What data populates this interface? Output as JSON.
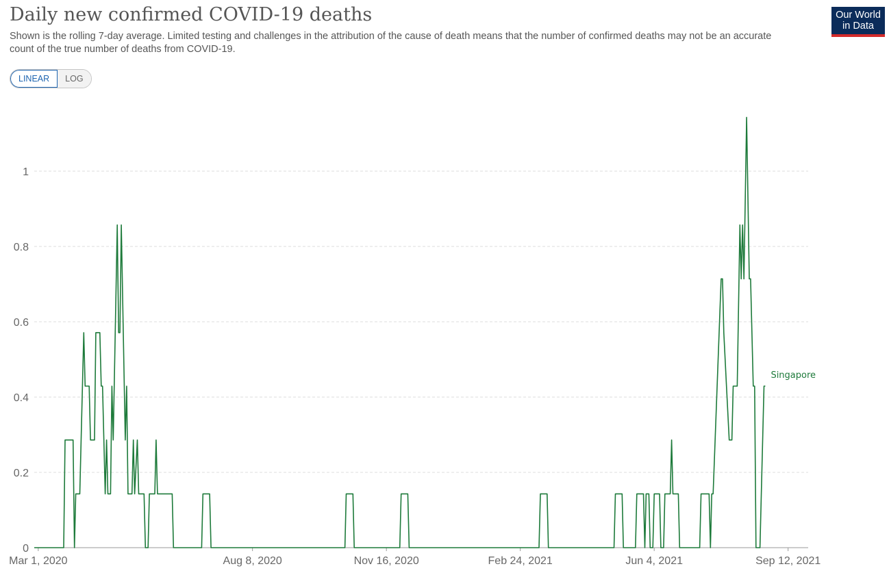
{
  "header": {
    "title": "Daily new confirmed COVID-19 deaths",
    "subtitle": "Shown is the rolling 7-day average. Limited testing and challenges in the attribution of the cause of death means that the number of confirmed deaths may not be an accurate count of the true number of deaths from COVID-19."
  },
  "logo": {
    "line1": "Our World",
    "line2": "in Data",
    "bg_color": "#0b2c5a",
    "accent_color": "#d42b2b"
  },
  "controls": {
    "linear_label": "LINEAR",
    "log_label": "LOG",
    "selected": "LINEAR"
  },
  "chart_data": {
    "type": "line",
    "x_axis_type": "date",
    "xlim": [
      "2020-02-27",
      "2021-09-27"
    ],
    "ylim": [
      0,
      1.2
    ],
    "y_ticks": [
      0,
      0.2,
      0.4,
      0.6,
      0.8,
      1
    ],
    "y_tick_labels": [
      "0",
      "0.2",
      "0.4",
      "0.6",
      "0.8",
      "1"
    ],
    "x_ticks": [
      "2020-03-01",
      "2020-08-08",
      "2020-11-16",
      "2021-02-24",
      "2021-06-04",
      "2021-09-12"
    ],
    "x_tick_labels": [
      "Mar 1, 2020",
      "Aug 8, 2020",
      "Nov 16, 2020",
      "Feb 24, 2021",
      "Jun 4, 2021",
      "Sep 12, 2021"
    ],
    "grid": "horizontal dashed",
    "series": [
      {
        "name": "Singapore",
        "color": "#1d7a3a",
        "points": [
          [
            "2020-02-27",
            0
          ],
          [
            "2020-03-20",
            0
          ],
          [
            "2020-03-21",
            0.286
          ],
          [
            "2020-03-27",
            0.286
          ],
          [
            "2020-03-28",
            0
          ],
          [
            "2020-03-29",
            0.143
          ],
          [
            "2020-04-01",
            0.143
          ],
          [
            "2020-04-04",
            0.571
          ],
          [
            "2020-04-05",
            0.429
          ],
          [
            "2020-04-08",
            0.429
          ],
          [
            "2020-04-09",
            0.286
          ],
          [
            "2020-04-12",
            0.286
          ],
          [
            "2020-04-13",
            0.571
          ],
          [
            "2020-04-16",
            0.571
          ],
          [
            "2020-04-17",
            0.429
          ],
          [
            "2020-04-18",
            0.429
          ],
          [
            "2020-04-20",
            0.143
          ],
          [
            "2020-04-21",
            0.286
          ],
          [
            "2020-04-22",
            0.143
          ],
          [
            "2020-04-24",
            0.143
          ],
          [
            "2020-04-25",
            0.429
          ],
          [
            "2020-04-26",
            0.286
          ],
          [
            "2020-04-29",
            0.857
          ],
          [
            "2020-04-30",
            0.571
          ],
          [
            "2020-05-01",
            0.571
          ],
          [
            "2020-05-02",
            0.857
          ],
          [
            "2020-05-05",
            0.286
          ],
          [
            "2020-05-06",
            0.429
          ],
          [
            "2020-05-07",
            0.143
          ],
          [
            "2020-05-10",
            0.143
          ],
          [
            "2020-05-11",
            0.286
          ],
          [
            "2020-05-12",
            0.143
          ],
          [
            "2020-05-14",
            0.286
          ],
          [
            "2020-05-15",
            0.143
          ],
          [
            "2020-05-19",
            0.143
          ],
          [
            "2020-05-20",
            0
          ],
          [
            "2020-05-22",
            0
          ],
          [
            "2020-05-23",
            0.143
          ],
          [
            "2020-05-27",
            0.143
          ],
          [
            "2020-05-28",
            0.286
          ],
          [
            "2020-05-29",
            0.143
          ],
          [
            "2020-06-09",
            0.143
          ],
          [
            "2020-06-10",
            0
          ],
          [
            "2020-07-01",
            0
          ],
          [
            "2020-07-02",
            0.143
          ],
          [
            "2020-07-07",
            0.143
          ],
          [
            "2020-07-08",
            0
          ],
          [
            "2020-10-16",
            0
          ],
          [
            "2020-10-17",
            0.143
          ],
          [
            "2020-10-22",
            0.143
          ],
          [
            "2020-10-23",
            0
          ],
          [
            "2020-11-26",
            0
          ],
          [
            "2020-11-27",
            0.143
          ],
          [
            "2020-12-02",
            0.143
          ],
          [
            "2020-12-03",
            0
          ],
          [
            "2021-03-10",
            0
          ],
          [
            "2021-03-11",
            0.143
          ],
          [
            "2021-03-16",
            0.143
          ],
          [
            "2021-03-17",
            0
          ],
          [
            "2021-05-05",
            0
          ],
          [
            "2021-05-06",
            0.143
          ],
          [
            "2021-05-11",
            0.143
          ],
          [
            "2021-05-12",
            0
          ],
          [
            "2021-05-21",
            0
          ],
          [
            "2021-05-22",
            0.143
          ],
          [
            "2021-05-27",
            0.143
          ],
          [
            "2021-05-28",
            0
          ],
          [
            "2021-05-29",
            0.143
          ],
          [
            "2021-05-31",
            0.143
          ],
          [
            "2021-06-01",
            0
          ],
          [
            "2021-06-03",
            0
          ],
          [
            "2021-06-04",
            0.143
          ],
          [
            "2021-06-08",
            0.143
          ],
          [
            "2021-06-09",
            0
          ],
          [
            "2021-06-11",
            0
          ],
          [
            "2021-06-12",
            0.143
          ],
          [
            "2021-06-16",
            0.143
          ],
          [
            "2021-06-17",
            0.286
          ],
          [
            "2021-06-18",
            0.143
          ],
          [
            "2021-06-22",
            0.143
          ],
          [
            "2021-06-23",
            0
          ],
          [
            "2021-07-08",
            0
          ],
          [
            "2021-07-09",
            0.143
          ],
          [
            "2021-07-15",
            0.143
          ],
          [
            "2021-07-16",
            0
          ],
          [
            "2021-07-17",
            0.143
          ],
          [
            "2021-07-18",
            0.143
          ],
          [
            "2021-07-24",
            0.714
          ],
          [
            "2021-07-25",
            0.714
          ],
          [
            "2021-07-26",
            0.571
          ],
          [
            "2021-07-28",
            0.429
          ],
          [
            "2021-07-30",
            0.286
          ],
          [
            "2021-08-01",
            0.286
          ],
          [
            "2021-08-02",
            0.429
          ],
          [
            "2021-08-05",
            0.429
          ],
          [
            "2021-08-07",
            0.857
          ],
          [
            "2021-08-08",
            0.714
          ],
          [
            "2021-08-09",
            0.857
          ],
          [
            "2021-08-10",
            0.714
          ],
          [
            "2021-08-12",
            1.143
          ],
          [
            "2021-08-14",
            0.714
          ],
          [
            "2021-08-15",
            0.714
          ],
          [
            "2021-08-17",
            0.429
          ],
          [
            "2021-08-18",
            0.429
          ],
          [
            "2021-08-19",
            0
          ],
          [
            "2021-08-22",
            0
          ],
          [
            "2021-08-25",
            0.429
          ],
          [
            "2021-08-26",
            0.429
          ]
        ]
      }
    ]
  }
}
